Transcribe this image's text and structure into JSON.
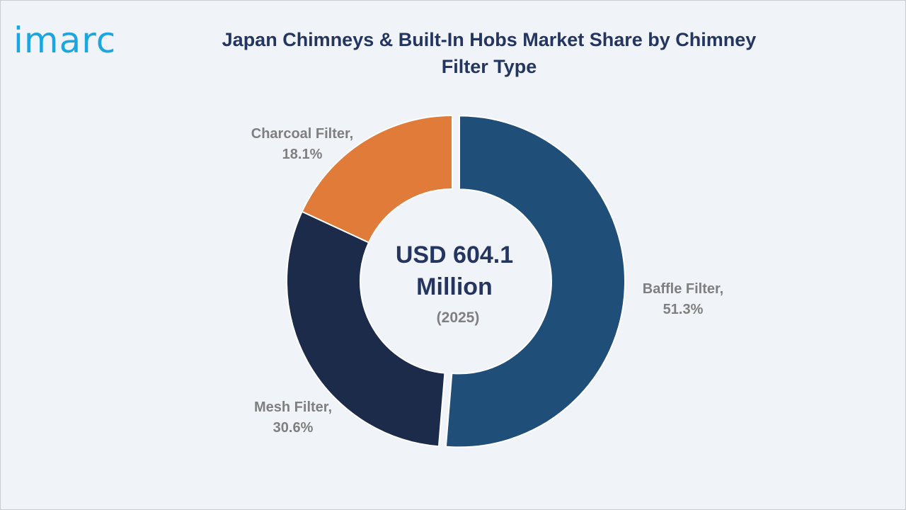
{
  "logo": {
    "text": "imarc"
  },
  "chart_data": {
    "type": "pie",
    "title": "Japan Chimneys & Built-In Hobs Market Share by Chimney Filter Type",
    "center_label": {
      "value_line1": "USD 604.1",
      "value_line2": "Million",
      "year": "(2025)"
    },
    "slices": [
      {
        "name": "Baffle Filter",
        "value": 51.3,
        "label_name": "Baffle Filter,",
        "label_value": "51.3%",
        "color": "#1f4e79",
        "exploded": true
      },
      {
        "name": "Mesh Filter",
        "value": 30.6,
        "label_name": "Mesh Filter,",
        "label_value": "30.6%",
        "color": "#1c2b4a",
        "exploded": false
      },
      {
        "name": "Charcoal Filter",
        "value": 18.1,
        "label_name": "Charcoal Filter,",
        "label_value": "18.1%",
        "color": "#e07b39",
        "exploded": false
      }
    ]
  }
}
